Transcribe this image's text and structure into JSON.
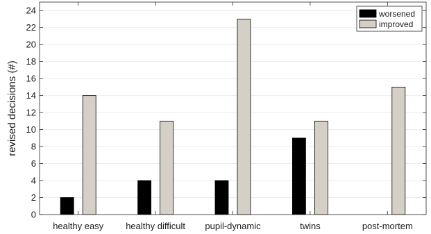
{
  "chart_data": {
    "type": "bar",
    "title": "",
    "xlabel": "",
    "ylabel": "revised decisions (#)",
    "ylim": [
      0,
      25
    ],
    "yticks": [
      0,
      2,
      4,
      6,
      8,
      10,
      12,
      14,
      16,
      18,
      20,
      22,
      24
    ],
    "grid": true,
    "legend_position": "top-right",
    "categories": [
      "healthy easy",
      "healthy difficult",
      "pupil-dynamic",
      "twins",
      "post-mortem"
    ],
    "series": [
      {
        "name": "worsened",
        "color": "#000000",
        "values": [
          2,
          4,
          4,
          9,
          0
        ]
      },
      {
        "name": "improved",
        "color": "#d4d0c8",
        "values": [
          14,
          11,
          23,
          11,
          15
        ]
      }
    ]
  }
}
